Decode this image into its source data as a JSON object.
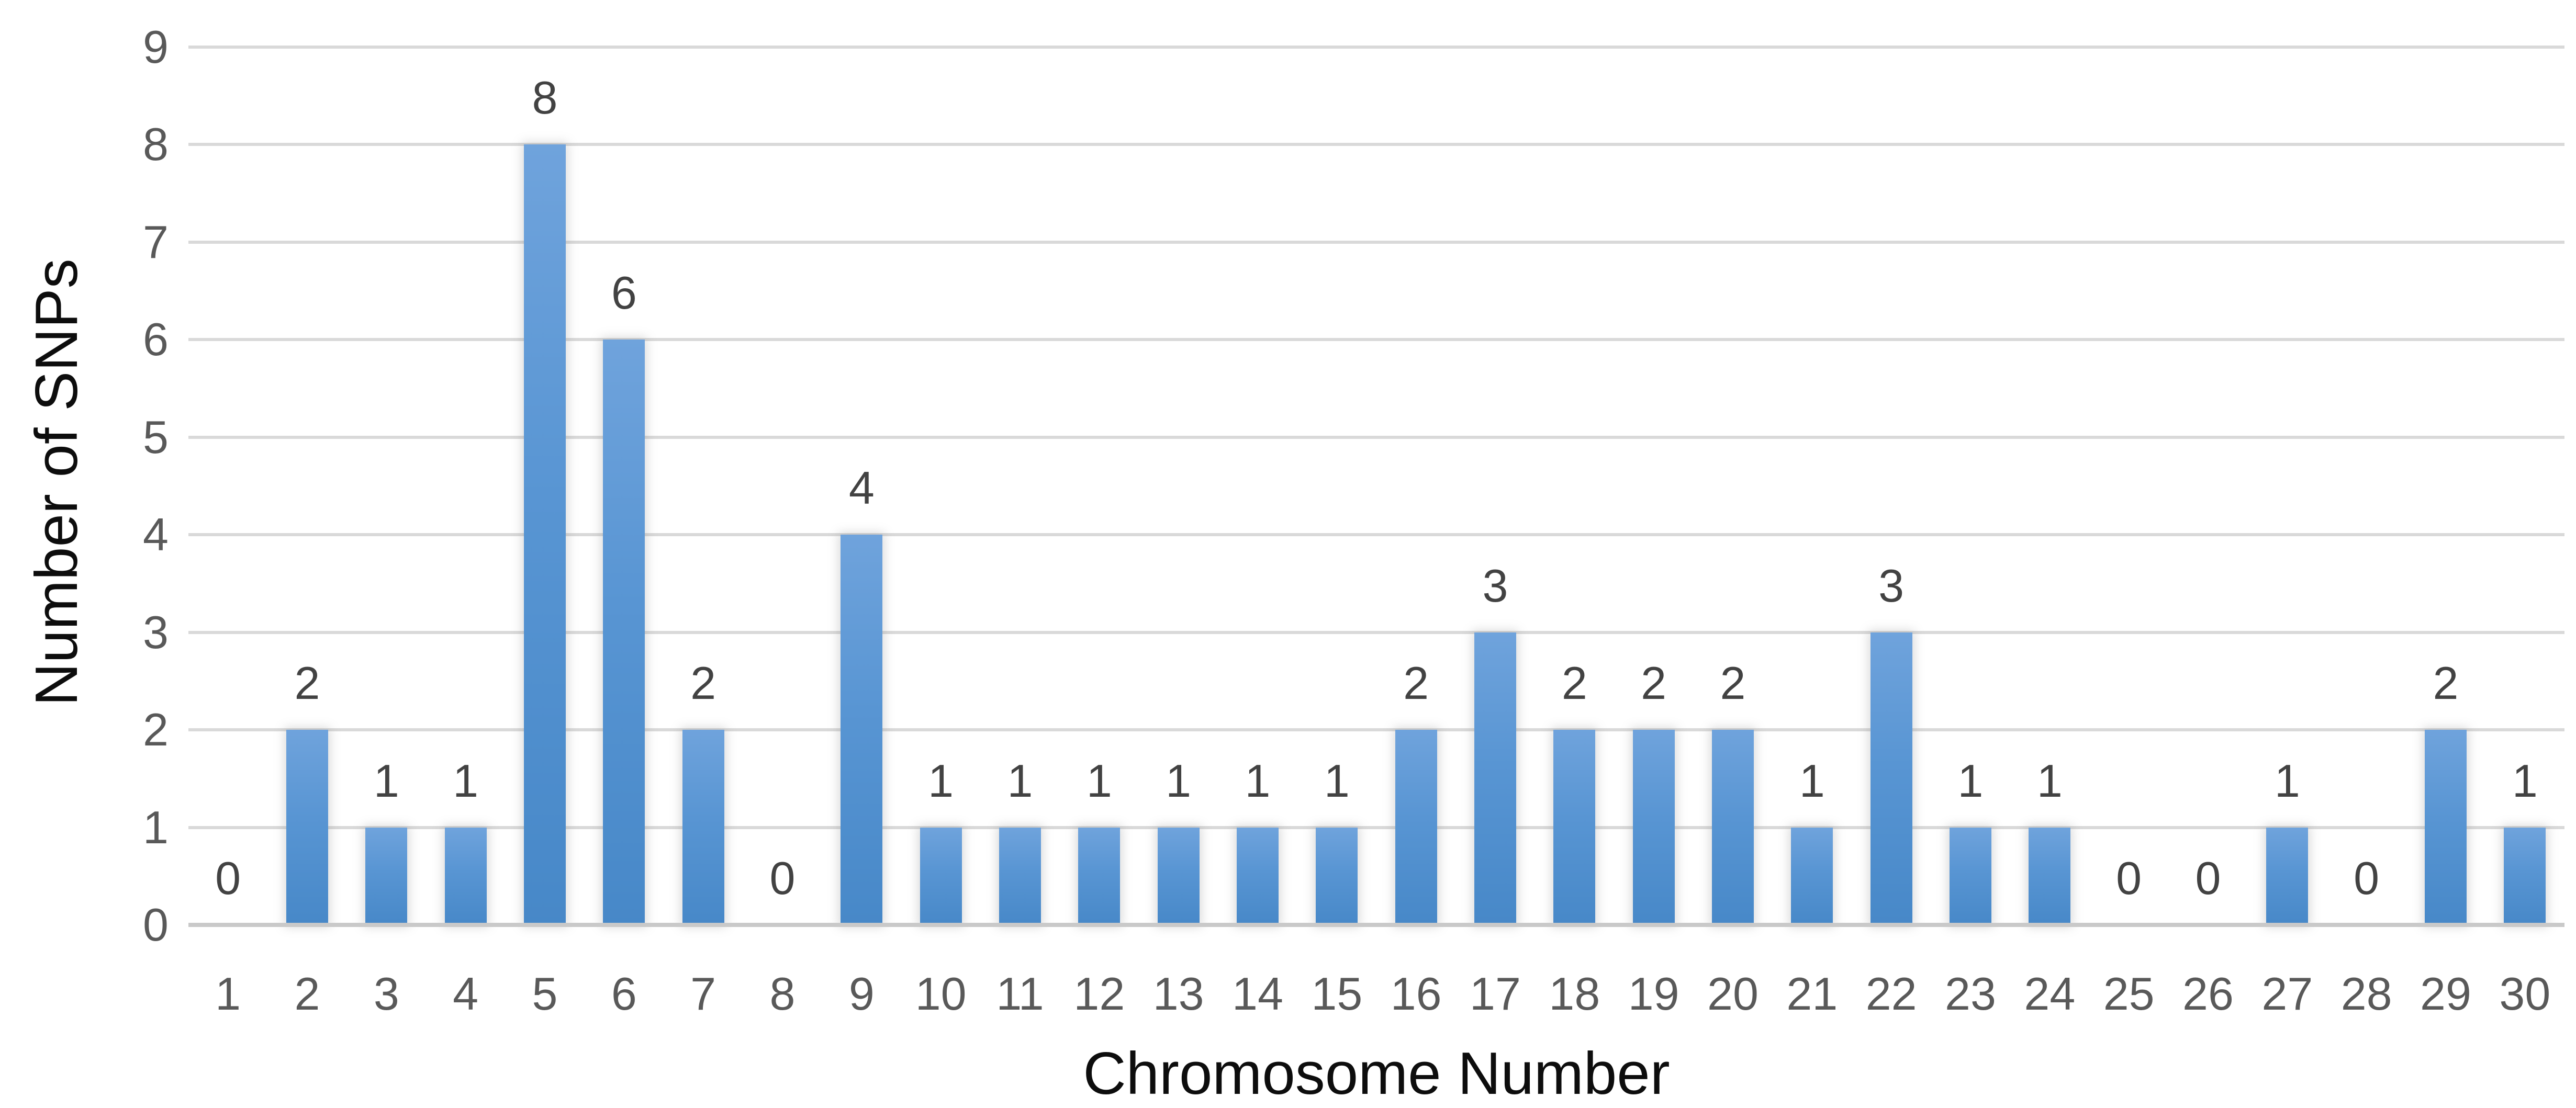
{
  "chart_data": {
    "type": "bar",
    "title": "",
    "xlabel": "Chromosome Number",
    "ylabel": "Number of SNPs",
    "categories": [
      "1",
      "2",
      "3",
      "4",
      "5",
      "6",
      "7",
      "8",
      "9",
      "10",
      "11",
      "12",
      "13",
      "14",
      "15",
      "16",
      "17",
      "18",
      "19",
      "20",
      "21",
      "22",
      "23",
      "24",
      "25",
      "26",
      "27",
      "28",
      "29",
      "30"
    ],
    "values": [
      0,
      2,
      1,
      1,
      8,
      6,
      2,
      0,
      4,
      1,
      1,
      1,
      1,
      1,
      1,
      2,
      3,
      2,
      2,
      2,
      1,
      3,
      1,
      1,
      0,
      0,
      1,
      0,
      2,
      1
    ],
    "data_labels": [
      "0",
      "2",
      "1",
      "1",
      "8",
      "6",
      "2",
      "0",
      "4",
      "1",
      "1",
      "1",
      "1",
      "1",
      "1",
      "2",
      "3",
      "2",
      "2",
      "2",
      "1",
      "3",
      "1",
      "1",
      "0",
      "0",
      "1",
      "0",
      "2",
      "1"
    ],
    "ylim": [
      0,
      9
    ],
    "yticks": [
      "0",
      "1",
      "2",
      "3",
      "4",
      "5",
      "6",
      "7",
      "8",
      "9"
    ],
    "grid": "horizontal",
    "legend": "none",
    "colors": {
      "bar_gradient_top": "#6FA3DC",
      "bar_gradient_mid": "#5895D3",
      "bar_gradient_bottom": "#4788C8",
      "gridline": "#D9D9D9",
      "axis_line": "#C9C9C9",
      "tick_label": "#595959",
      "data_label": "#424242",
      "axis_title": "#0D0D0D",
      "background": "#FFFFFF"
    }
  }
}
